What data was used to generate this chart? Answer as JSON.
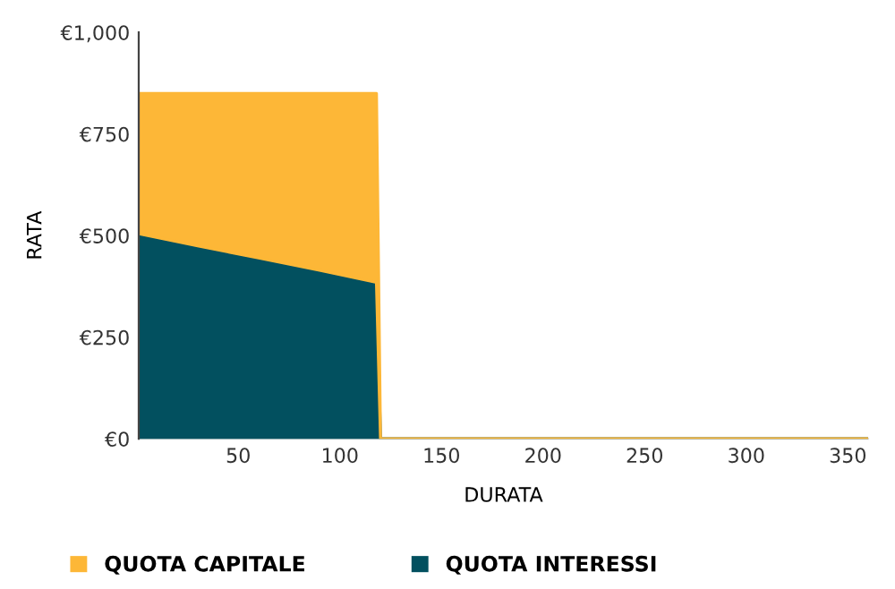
{
  "chart_data": {
    "type": "area",
    "stacked": true,
    "xlabel": "DURATA",
    "ylabel": "RATA",
    "x": [
      1,
      30,
      60,
      90,
      118,
      120,
      360
    ],
    "series": [
      {
        "name": "QUOTA INTERESSI",
        "color": "#02505f",
        "values": [
          505,
          475,
          445,
          415,
          385,
          0,
          0
        ]
      },
      {
        "name": "QUOTA CAPITALE",
        "color": "#fdb737",
        "values": [
          345,
          375,
          405,
          435,
          465,
          0,
          0
        ]
      }
    ],
    "xlim": [
      1,
      360
    ],
    "xticks": [
      50,
      100,
      150,
      200,
      250,
      300,
      350
    ],
    "ylim": [
      0,
      1000
    ],
    "yticks": [
      {
        "value": 0,
        "label": "€0"
      },
      {
        "value": 250,
        "label": "€250"
      },
      {
        "value": 500,
        "label": "€500"
      },
      {
        "value": 750,
        "label": "€750"
      },
      {
        "value": 1000,
        "label": "€1,000"
      }
    ],
    "grid": false,
    "legend": "bottom left"
  }
}
